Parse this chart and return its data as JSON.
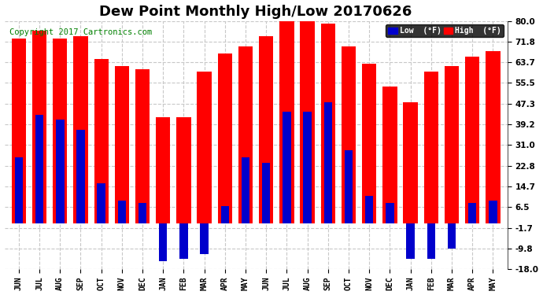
{
  "title": "Dew Point Monthly High/Low 20170626",
  "copyright": "Copyright 2017 Cartronics.com",
  "months": [
    "JUN",
    "JUL",
    "AUG",
    "SEP",
    "OCT",
    "NOV",
    "DEC",
    "JAN",
    "FEB",
    "MAR",
    "APR",
    "MAY",
    "JUN",
    "JUL",
    "AUG",
    "SEP",
    "OCT",
    "NOV",
    "DEC",
    "JAN",
    "FEB",
    "MAR",
    "APR",
    "MAY"
  ],
  "high_values": [
    73,
    76,
    73,
    74,
    65,
    62,
    61,
    42,
    42,
    60,
    67,
    70,
    74,
    81,
    80,
    79,
    70,
    63,
    54,
    48,
    60,
    62,
    66,
    68
  ],
  "low_values": [
    26,
    43,
    41,
    37,
    16,
    9,
    8,
    -15,
    -14,
    -12,
    7,
    26,
    24,
    44,
    44,
    48,
    29,
    11,
    8,
    -14,
    -14,
    -10,
    8,
    9
  ],
  "red_bar_width": 0.7,
  "blue_bar_width": 0.4,
  "high_color": "#ff0000",
  "low_color": "#0000cc",
  "background_color": "#ffffff",
  "grid_color": "#c8c8c8",
  "ylim": [
    -18.0,
    80.0
  ],
  "yticks": [
    -18.0,
    -9.8,
    -1.7,
    6.5,
    14.7,
    22.8,
    31.0,
    39.2,
    47.3,
    55.5,
    63.7,
    71.8,
    80.0
  ],
  "title_fontsize": 13,
  "copyright_fontsize": 7.5,
  "legend_low_label": "Low  (°F)",
  "legend_high_label": "High  (°F)"
}
